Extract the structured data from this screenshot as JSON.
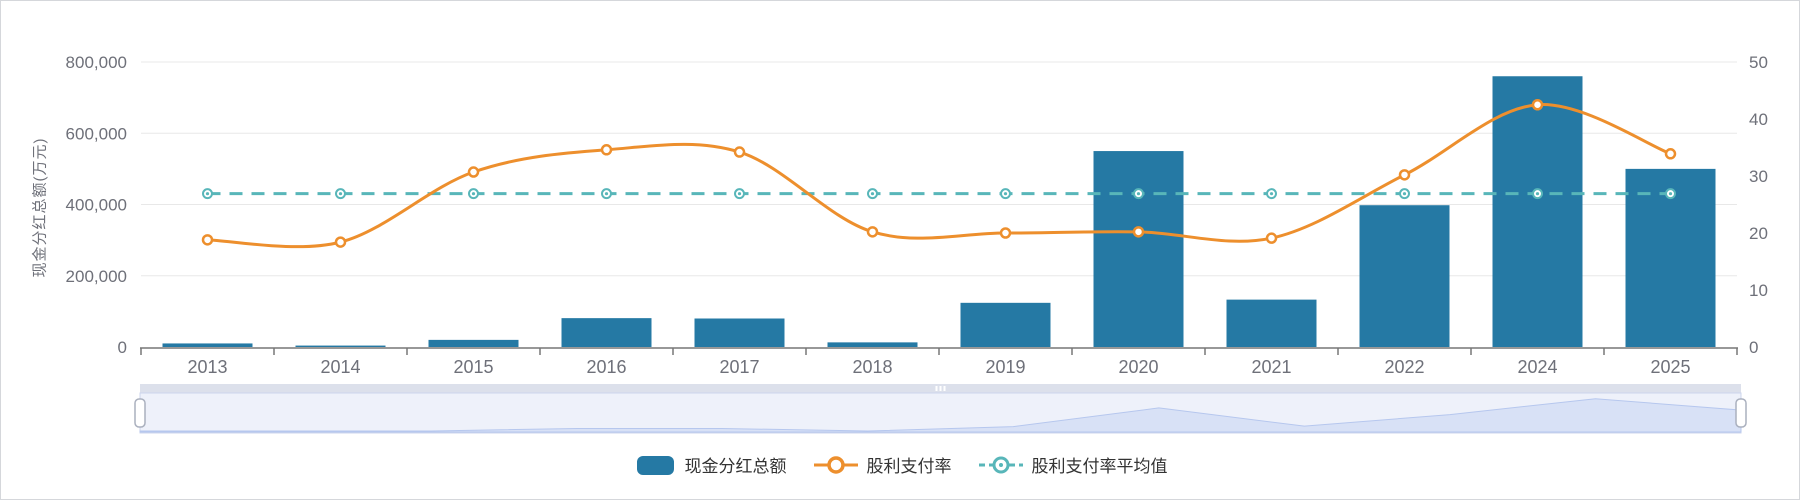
{
  "chart_data": {
    "type": "bar",
    "categories": [
      "2013",
      "2014",
      "2015",
      "2016",
      "2017",
      "2018",
      "2019",
      "2020",
      "2021",
      "2022",
      "2024",
      "2025"
    ],
    "series": [
      {
        "name": "现金分红总额",
        "type": "bar",
        "axis": "left",
        "color": "#2579A4",
        "values": [
          10000,
          4000,
          20000,
          81000,
          80000,
          13000,
          124000,
          550000,
          133000,
          398000,
          760000,
          500000
        ]
      },
      {
        "name": "股利支付率",
        "type": "line",
        "smooth": true,
        "axis": "right",
        "color": "#ED8F2D",
        "values": [
          18.8,
          18.4,
          30.7,
          34.6,
          34.2,
          20.2,
          20.0,
          20.2,
          19.1,
          30.2,
          42.5,
          33.9
        ]
      },
      {
        "name": "股利支付率平均值",
        "type": "line",
        "dashed": true,
        "axis": "right",
        "color": "#58B6B9",
        "average_value": 26.9,
        "values": [
          26.9,
          26.9,
          26.9,
          26.9,
          26.9,
          26.9,
          26.9,
          26.9,
          26.9,
          26.9,
          26.9,
          26.9
        ]
      }
    ],
    "left_axis": {
      "name": "现金分红总额(万元)",
      "min": 0,
      "max": 800000,
      "interval": 200000,
      "tick_labels": [
        "0",
        "200,000",
        "400,000",
        "600,000",
        "800,000"
      ]
    },
    "right_axis": {
      "min": 0,
      "max": 50,
      "interval": 10,
      "tick_labels": [
        "0",
        "10",
        "20",
        "30",
        "40",
        "50"
      ]
    },
    "grid": true,
    "legend_position": "bottom",
    "colors": {
      "grid_line": "#e8e8e8",
      "axis_line": "#777777",
      "tick_label": "#6e7079",
      "legend_text": "#333333"
    },
    "datazoom": {
      "move_handle_color": "#dce0eb",
      "track_color": "#eef1fa",
      "shadow_fill": "#d4def5",
      "shadow_line": "#b6c7ee",
      "handle_fill": "#ffffff",
      "handle_border": "#aab0be"
    }
  }
}
